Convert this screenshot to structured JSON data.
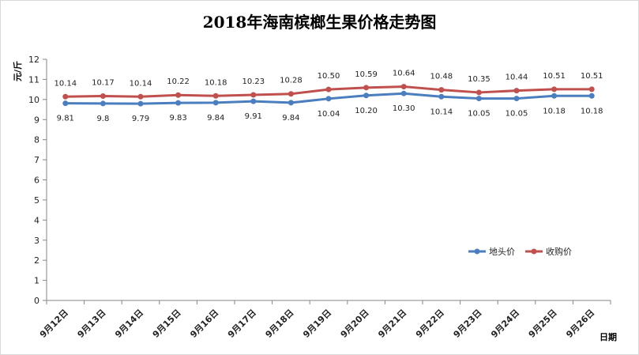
{
  "chart_data": {
    "type": "line",
    "title": "2018年海南槟榔生果价格走势图",
    "ylabel": "元/斤",
    "xlabel": "日期",
    "ylim": [
      0,
      12
    ],
    "yticks": [
      0,
      1,
      2,
      3,
      4,
      5,
      6,
      7,
      8,
      9,
      10,
      11,
      12
    ],
    "grid": false,
    "legend": "right",
    "categories": [
      "9月12日",
      "9月13日",
      "9月14日",
      "9月15日",
      "9月16日",
      "9月17日",
      "9月18日",
      "9月19日",
      "9月20日",
      "9月21日",
      "9月22日",
      "9月23日",
      "9月24日",
      "9月25日",
      "9月26日"
    ],
    "series": [
      {
        "name": "地头价",
        "color": "#4a7ebf",
        "values": [
          9.81,
          9.8,
          9.79,
          9.83,
          9.84,
          9.91,
          9.84,
          10.04,
          10.2,
          10.3,
          10.14,
          10.05,
          10.05,
          10.18,
          10.18
        ],
        "labels": [
          "9.81",
          "9.8",
          "9.79",
          "9.83",
          "9.84",
          "9.91",
          "9.84",
          "10.04",
          "10.20",
          "10.30",
          "10.14",
          "10.05",
          "10.05",
          "10.18",
          "10.18"
        ]
      },
      {
        "name": "收购价",
        "color": "#c0504d",
        "values": [
          10.14,
          10.17,
          10.14,
          10.22,
          10.18,
          10.23,
          10.28,
          10.5,
          10.59,
          10.64,
          10.48,
          10.35,
          10.44,
          10.51,
          10.51
        ],
        "labels": [
          "10.14",
          "10.17",
          "10.14",
          "10.22",
          "10.18",
          "10.23",
          "10.28",
          "10.50",
          "10.59",
          "10.64",
          "10.48",
          "10.35",
          "10.44",
          "10.51",
          "10.51"
        ]
      }
    ]
  }
}
